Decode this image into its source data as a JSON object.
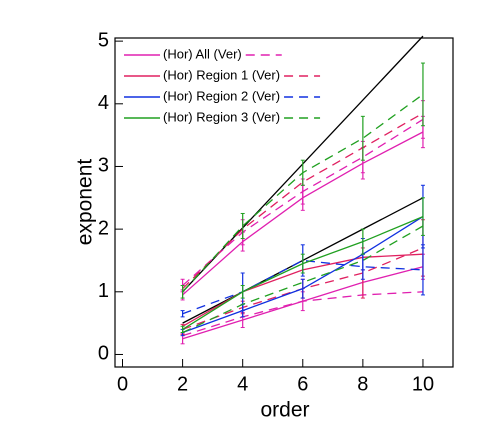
{
  "chart_data": {
    "type": "line",
    "x_label": "order",
    "y_label": "exponent",
    "xlim": [
      -0.25,
      11
    ],
    "ylim": [
      -0.2,
      5.05
    ],
    "xticks": [
      0,
      2,
      4,
      6,
      8,
      10
    ],
    "yticks": [
      0,
      1,
      2,
      3,
      4,
      5
    ],
    "x": [
      2,
      4,
      6,
      8,
      10
    ],
    "legend": [
      {
        "label": "(Hor) All (Ver)",
        "color": "#e020b0"
      },
      {
        "label": "(Hor) Region 1 (Ver)",
        "color": "#e02060"
      },
      {
        "label": "(Hor) Region 2 (Ver)",
        "color": "#1030e0"
      },
      {
        "label": "(Hor) Region 3 (Ver)",
        "color": "#20a020"
      }
    ],
    "series": [
      {
        "color": "#000000",
        "dashed": false,
        "values": [
          1.0,
          2.02,
          3.04,
          4.06,
          5.08
        ]
      },
      {
        "color": "#000000",
        "dashed": false,
        "values": [
          0.5,
          1.0,
          1.5,
          2.0,
          2.5
        ]
      },
      {
        "color": "#e020b0",
        "dashed": false,
        "values": [
          0.95,
          1.8,
          2.5,
          3.05,
          3.55
        ],
        "errors": [
          0.08,
          0.15,
          0.2,
          0.25,
          0.25
        ]
      },
      {
        "color": "#e020b0",
        "dashed": true,
        "values": [
          1.1,
          1.95,
          2.6,
          3.15,
          3.75
        ],
        "errors": [
          0.1,
          0.2,
          0.2,
          0.25,
          0.3
        ]
      },
      {
        "color": "#e02060",
        "dashed": true,
        "values": [
          1.05,
          2.0,
          2.75,
          3.3,
          3.85
        ]
      },
      {
        "color": "#20a020",
        "dashed": true,
        "values": [
          1.0,
          2.05,
          2.9,
          3.45,
          4.15
        ],
        "errors": [
          0.1,
          0.2,
          0.2,
          0.35,
          0.5
        ]
      },
      {
        "color": "#e020b0",
        "dashed": false,
        "values": [
          0.25,
          0.55,
          0.85,
          1.15,
          1.4
        ],
        "errors": [
          0.08,
          0.12,
          0.15,
          0.2,
          0.2
        ]
      },
      {
        "color": "#e020b0",
        "dashed": true,
        "values": [
          0.3,
          0.6,
          0.85,
          0.95,
          1.0
        ]
      },
      {
        "color": "#e02060",
        "dashed": false,
        "values": [
          0.45,
          1.0,
          1.35,
          1.55,
          1.6
        ]
      },
      {
        "color": "#e02060",
        "dashed": true,
        "values": [
          0.4,
          0.75,
          1.05,
          1.3,
          1.7
        ],
        "errors": [
          0.08,
          0.1,
          0.15,
          0.4,
          0.45
        ]
      },
      {
        "color": "#1030e0",
        "dashed": false,
        "values": [
          0.35,
          0.7,
          1.05,
          1.6,
          2.2
        ],
        "errors": [
          0.05,
          0.1,
          0.15,
          0.25,
          0.5
        ]
      },
      {
        "color": "#1030e0",
        "dashed": true,
        "values": [
          0.65,
          1.0,
          1.5,
          1.4,
          1.35
        ],
        "errors": [
          0.05,
          0.3,
          0.25,
          0.2,
          0.4
        ]
      },
      {
        "color": "#20a020",
        "dashed": false,
        "values": [
          0.4,
          1.0,
          1.45,
          1.8,
          2.2
        ],
        "errors": [
          0.05,
          0.1,
          0.15,
          0.2,
          0.3
        ]
      },
      {
        "color": "#20a020",
        "dashed": true,
        "values": [
          0.35,
          0.8,
          1.15,
          1.5,
          2.05
        ]
      }
    ]
  }
}
